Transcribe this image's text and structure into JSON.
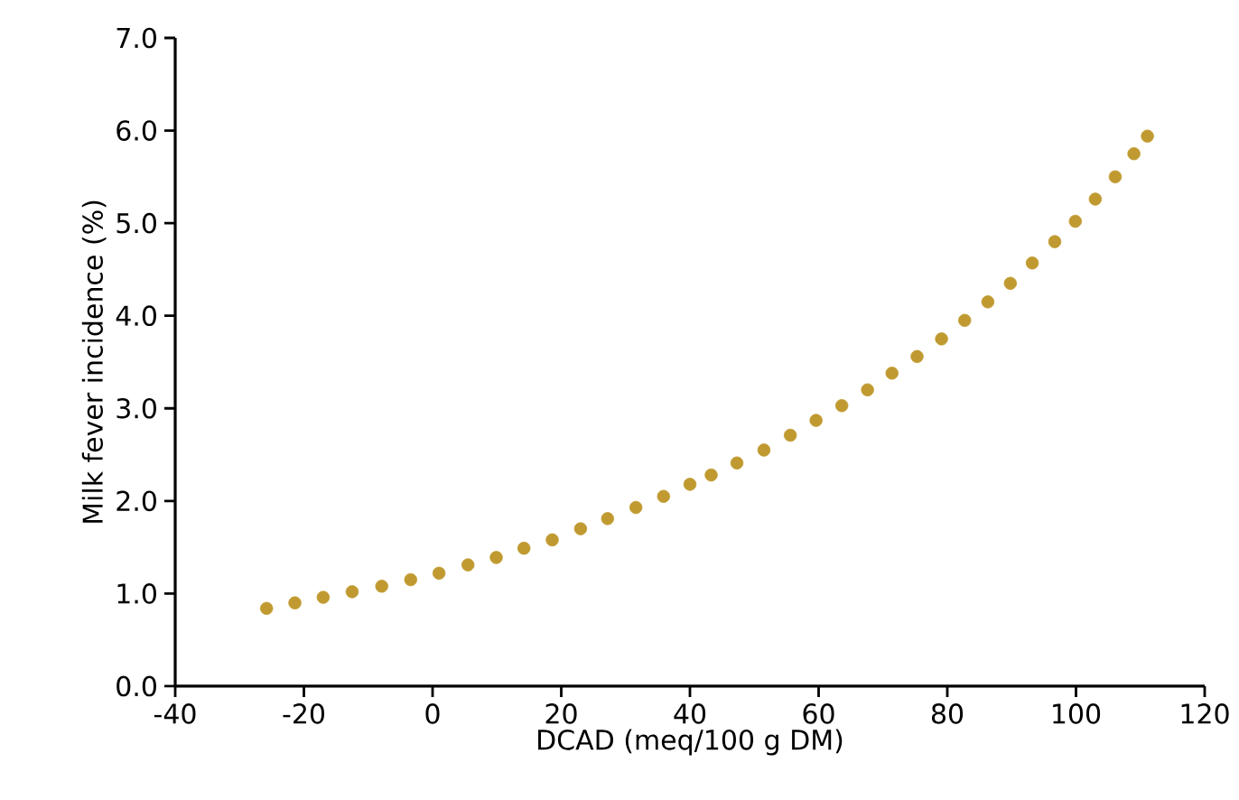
{
  "chart_data": {
    "type": "scatter",
    "xlabel": "DCAD (meq/100 g DM)",
    "ylabel": "Milk fever incidence (%)",
    "x": [
      -25.8,
      -21.4,
      -17.0,
      -12.5,
      -7.9,
      -3.4,
      1.0,
      5.5,
      9.9,
      14.2,
      18.6,
      23.0,
      27.2,
      31.6,
      35.9,
      40.0,
      43.3,
      47.3,
      51.5,
      55.6,
      59.6,
      63.6,
      67.6,
      71.4,
      75.3,
      79.1,
      82.7,
      86.3,
      89.8,
      93.2,
      96.7,
      99.9,
      103.0,
      106.1,
      109.0,
      111.1
    ],
    "series": [
      {
        "color": "#c09a30",
        "values": [
          0.84,
          0.9,
          0.96,
          1.02,
          1.08,
          1.15,
          1.22,
          1.31,
          1.39,
          1.49,
          1.58,
          1.7,
          1.81,
          1.93,
          2.05,
          2.18,
          2.28,
          2.41,
          2.55,
          2.71,
          2.87,
          3.03,
          3.2,
          3.38,
          3.56,
          3.75,
          3.95,
          4.15,
          4.35,
          4.57,
          4.8,
          5.02,
          5.26,
          5.5,
          5.75,
          5.94
        ]
      }
    ],
    "xlim": [
      -40,
      120
    ],
    "xticks": [
      -40,
      -20,
      0,
      20,
      40,
      60,
      80,
      100,
      120
    ],
    "ylim": [
      0,
      7
    ],
    "yticks": [
      {
        "value": 0,
        "label": "0.0"
      },
      {
        "value": 1,
        "label": "1.0"
      },
      {
        "value": 2,
        "label": "2.0"
      },
      {
        "value": 3,
        "label": "3.0"
      },
      {
        "value": 4,
        "label": "4.0"
      },
      {
        "value": 5,
        "label": "5.0"
      },
      {
        "value": 6,
        "label": "6.0"
      },
      {
        "value": 7,
        "label": "7.0"
      }
    ],
    "grid": false
  }
}
